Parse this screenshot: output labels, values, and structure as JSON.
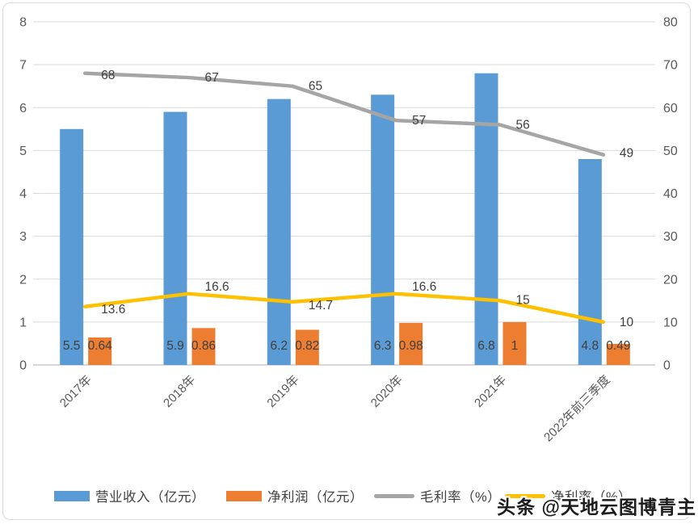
{
  "chart_data": {
    "type": "bar",
    "subtype": "combo-bar-line-dual-axis",
    "title": "",
    "categories": [
      "2017年",
      "2018年",
      "2019年",
      "2020年",
      "2021年",
      "2022年前三季度"
    ],
    "bar_series": [
      {
        "id": "revenue-bar",
        "name": "营业收入（亿元）",
        "color": "#5B9BD5",
        "axis": "left",
        "values": [
          5.5,
          5.9,
          6.2,
          6.3,
          6.8,
          4.8
        ]
      },
      {
        "id": "net-profit-bar",
        "name": "净利润（亿元）",
        "color": "#ED7D31",
        "axis": "left",
        "values": [
          0.64,
          0.86,
          0.82,
          0.98,
          1,
          0.49
        ]
      }
    ],
    "line_series": [
      {
        "id": "gross-margin-line",
        "name": "毛利率（%）",
        "color": "#A5A5A5",
        "axis": "right",
        "values": [
          68,
          67,
          65,
          57,
          56,
          49
        ],
        "label_dy": [
          2,
          0,
          0,
          0,
          0,
          -2
        ]
      },
      {
        "id": "net-margin-line",
        "name": "净利率（%）",
        "color": "#FFC000",
        "axis": "right",
        "values": [
          13.6,
          16.6,
          14.7,
          16.6,
          15,
          10
        ],
        "label_dy": [
          3,
          -9,
          4,
          -9,
          -1,
          0
        ]
      }
    ],
    "left_axis": {
      "min": 0,
      "max": 8,
      "step": 1,
      "ticks": [
        "0",
        "1",
        "2",
        "3",
        "4",
        "5",
        "6",
        "7",
        "8"
      ]
    },
    "right_axis": {
      "min": 0,
      "max": 80,
      "step": 10,
      "ticks": [
        "0",
        "10",
        "20",
        "30",
        "40",
        "50",
        "60",
        "70",
        "80"
      ]
    },
    "grid": "horizontal-only",
    "legend_position": "bottom",
    "colors": {
      "grid_line": "#D9D9D9",
      "baseline": "#C9C9C9",
      "axis_text": "#595959",
      "data_label_text": "#404040",
      "frame_border": "#D9D9D9",
      "background": "#FFFFFF"
    }
  },
  "watermark": {
    "text": "头条 @天地云图博青主"
  }
}
